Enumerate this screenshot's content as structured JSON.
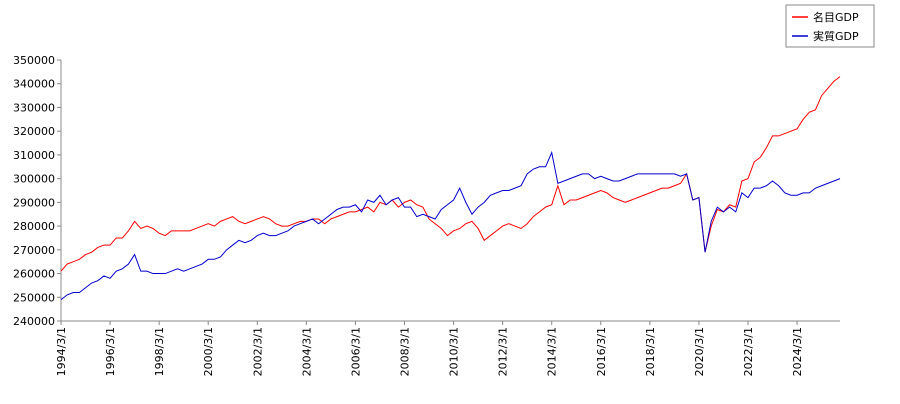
{
  "chart_data": {
    "type": "line",
    "x": [
      "1994/3/1",
      "1994/6/1",
      "1994/9/1",
      "1994/12/1",
      "1995/3/1",
      "1995/6/1",
      "1995/9/1",
      "1995/12/1",
      "1996/3/1",
      "1996/6/1",
      "1996/9/1",
      "1996/12/1",
      "1997/3/1",
      "1997/6/1",
      "1997/9/1",
      "1997/12/1",
      "1998/3/1",
      "1998/6/1",
      "1998/9/1",
      "1998/12/1",
      "1999/3/1",
      "1999/6/1",
      "1999/9/1",
      "1999/12/1",
      "2000/3/1",
      "2000/6/1",
      "2000/9/1",
      "2000/12/1",
      "2001/3/1",
      "2001/6/1",
      "2001/9/1",
      "2001/12/1",
      "2002/3/1",
      "2002/6/1",
      "2002/9/1",
      "2002/12/1",
      "2003/3/1",
      "2003/6/1",
      "2003/9/1",
      "2003/12/1",
      "2004/3/1",
      "2004/6/1",
      "2004/9/1",
      "2004/12/1",
      "2005/3/1",
      "2005/6/1",
      "2005/9/1",
      "2005/12/1",
      "2006/3/1",
      "2006/6/1",
      "2006/9/1",
      "2006/12/1",
      "2007/3/1",
      "2007/6/1",
      "2007/9/1",
      "2007/12/1",
      "2008/3/1",
      "2008/6/1",
      "2008/9/1",
      "2008/12/1",
      "2009/3/1",
      "2009/6/1",
      "2009/9/1",
      "2009/12/1",
      "2010/3/1",
      "2010/6/1",
      "2010/9/1",
      "2010/12/1",
      "2011/3/1",
      "2011/6/1",
      "2011/9/1",
      "2011/12/1",
      "2012/3/1",
      "2012/6/1",
      "2012/9/1",
      "2012/12/1",
      "2013/3/1",
      "2013/6/1",
      "2013/9/1",
      "2013/12/1",
      "2014/3/1",
      "2014/6/1",
      "2014/9/1",
      "2014/12/1",
      "2015/3/1",
      "2015/6/1",
      "2015/9/1",
      "2015/12/1",
      "2016/3/1",
      "2016/6/1",
      "2016/9/1",
      "2016/12/1",
      "2017/3/1",
      "2017/6/1",
      "2017/9/1",
      "2017/12/1",
      "2018/3/1",
      "2018/6/1",
      "2018/9/1",
      "2018/12/1",
      "2019/3/1",
      "2019/6/1",
      "2019/9/1",
      "2019/12/1",
      "2020/3/1",
      "2020/6/1",
      "2020/9/1",
      "2020/12/1",
      "2021/3/1",
      "2021/6/1",
      "2021/9/1",
      "2021/12/1",
      "2022/3/1",
      "2022/6/1",
      "2022/9/1",
      "2022/12/1",
      "2023/3/1",
      "2023/6/1",
      "2023/9/1",
      "2023/12/1",
      "2024/3/1",
      "2024/6/1",
      "2024/9/1",
      "2024/12/1",
      "2025/3/1",
      "2025/6/1",
      "2025/9/1",
      "2025/12/1"
    ],
    "series": [
      {
        "name": "名目GDP",
        "color": "#ff0000",
        "values": [
          261000,
          264000,
          265000,
          266000,
          268000,
          269000,
          271000,
          272000,
          272000,
          275000,
          275000,
          278000,
          282000,
          279000,
          280000,
          279000,
          277000,
          276000,
          278000,
          278000,
          278000,
          278000,
          279000,
          280000,
          281000,
          280000,
          282000,
          283000,
          284000,
          282000,
          281000,
          282000,
          283000,
          284000,
          283000,
          281000,
          280000,
          280000,
          281000,
          282000,
          282000,
          283000,
          283000,
          281000,
          283000,
          284000,
          285000,
          286000,
          286000,
          287000,
          288000,
          286000,
          290000,
          289000,
          291000,
          288000,
          290000,
          291000,
          289000,
          288000,
          283000,
          281000,
          279000,
          276000,
          278000,
          279000,
          281000,
          282000,
          279000,
          274000,
          276000,
          278000,
          280000,
          281000,
          280000,
          279000,
          281000,
          284000,
          286000,
          288000,
          289000,
          297000,
          289000,
          291000,
          291000,
          292000,
          293000,
          294000,
          295000,
          294000,
          292000,
          291000,
          290000,
          291000,
          292000,
          293000,
          294000,
          295000,
          296000,
          296000,
          297000,
          298000,
          302000,
          291000,
          292000,
          269000,
          280000,
          287000,
          286000,
          289000,
          288000,
          299000,
          300000,
          307000,
          309000,
          313000,
          318000,
          318000,
          319000,
          320000,
          321000,
          325000,
          328000,
          329000,
          335000,
          338000,
          341000,
          343000
        ]
      },
      {
        "name": "実質GDP",
        "color": "#0000cc",
        "values": [
          249000,
          251000,
          252000,
          252000,
          254000,
          256000,
          257000,
          259000,
          258000,
          261000,
          262000,
          264000,
          268000,
          261000,
          261000,
          260000,
          260000,
          260000,
          261000,
          262000,
          261000,
          262000,
          263000,
          264000,
          266000,
          266000,
          267000,
          270000,
          272000,
          274000,
          273000,
          274000,
          276000,
          277000,
          276000,
          276000,
          277000,
          278000,
          280000,
          281000,
          282000,
          283000,
          281000,
          283000,
          285000,
          287000,
          288000,
          288000,
          289000,
          286000,
          291000,
          290000,
          293000,
          289000,
          291000,
          292000,
          288000,
          288000,
          284000,
          285000,
          284000,
          283000,
          287000,
          289000,
          291000,
          296000,
          290000,
          285000,
          288000,
          290000,
          293000,
          294000,
          295000,
          295000,
          296000,
          297000,
          302000,
          304000,
          305000,
          305000,
          311000,
          298000,
          299000,
          300000,
          301000,
          302000,
          302000,
          300000,
          301000,
          300000,
          299000,
          299000,
          300000,
          301000,
          302000,
          302000,
          302000,
          302000,
          302000,
          302000,
          302000,
          301000,
          302000,
          291000,
          292000,
          269000,
          282000,
          288000,
          286000,
          288000,
          286000,
          294000,
          292000,
          296000,
          296000,
          297000,
          299000,
          297000,
          294000,
          293000,
          293000,
          294000,
          294000,
          296000,
          297000,
          298000,
          299000,
          300000
        ]
      }
    ],
    "xticks": [
      "1994/3/1",
      "1996/3/1",
      "1998/3/1",
      "2000/3/1",
      "2002/3/1",
      "2004/3/1",
      "2006/3/1",
      "2008/3/1",
      "2010/3/1",
      "2012/3/1",
      "2014/3/1",
      "2016/3/1",
      "2018/3/1",
      "2020/3/1",
      "2022/3/1",
      "2024/3/1"
    ],
    "ylim": [
      240000,
      350000
    ],
    "yticks": [
      240000,
      250000,
      260000,
      270000,
      280000,
      290000,
      300000,
      310000,
      320000,
      330000,
      340000,
      350000
    ],
    "legend": "top-right"
  }
}
